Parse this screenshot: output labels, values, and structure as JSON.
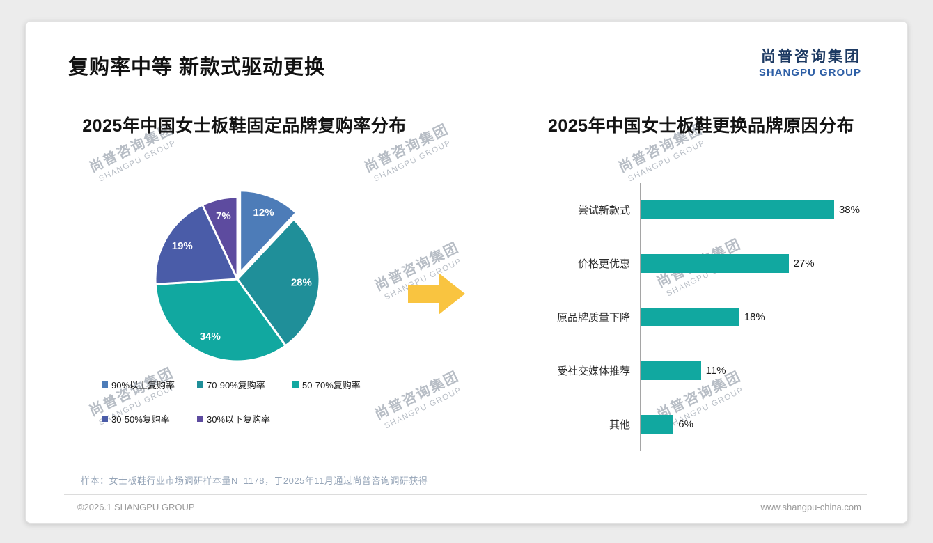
{
  "page": {
    "title": "复购率中等 新款式驱动更换",
    "logo": {
      "cn": "尚普咨询集团",
      "en": "SHANGPU GROUP"
    },
    "watermark": {
      "cn": "尚普咨询集团",
      "en": "SHANGPU GROUP"
    },
    "arrow_color": "#f9c440",
    "footer": {
      "note": "样本：女士板鞋行业市场调研样本量N=1178，于2025年11月通过尚普咨询调研获得",
      "copyright": "©2026.1 SHANGPU GROUP",
      "website": "www.shangpu-china.com"
    }
  },
  "chart_data": [
    {
      "type": "pie",
      "title": "2025年中国女士板鞋固定品牌复购率分布",
      "labels": [
        "90%以上复购率",
        "70-90%复购率",
        "50-70%复购率",
        "30-50%复购率",
        "30%以下复购率"
      ],
      "values": [
        12,
        28,
        34,
        19,
        7
      ],
      "unit": "%",
      "colors": [
        "#4d7cb8",
        "#1f8f99",
        "#11a8a0",
        "#4a5ca8",
        "#5d4b9f"
      ],
      "start_angle_deg": 0,
      "direction": "clockwise",
      "explode": [
        10,
        0,
        0,
        0,
        0
      ],
      "legend_position": "bottom"
    },
    {
      "type": "bar",
      "orientation": "horizontal",
      "title": "2025年中国女士板鞋更换品牌原因分布",
      "categories": [
        "尝试新款式",
        "价格更优惠",
        "原品牌质量下降",
        "受社交媒体推荐",
        "其他"
      ],
      "values": [
        38,
        27,
        18,
        11,
        6
      ],
      "value_suffix": "%",
      "bar_color": "#11a8a0",
      "xlim": [
        0,
        40
      ],
      "axis_color": "#a5a5a5",
      "legend_position": "none"
    }
  ]
}
